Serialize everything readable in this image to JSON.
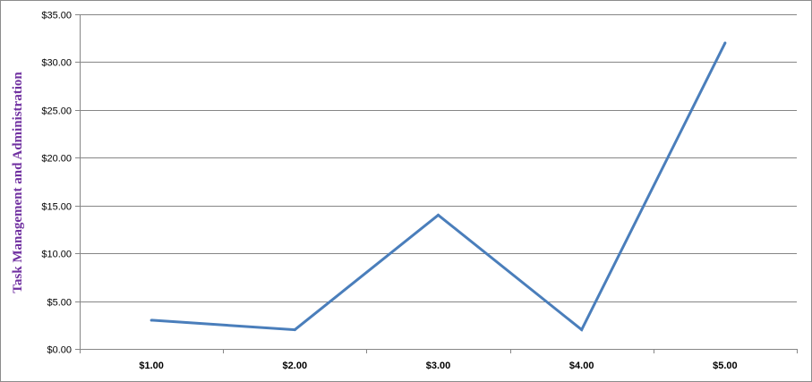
{
  "chart_data": {
    "type": "line",
    "title": "",
    "xlabel": "",
    "ylabel": "Task Management and Administration",
    "categories": [
      "$1.00",
      "$2.00",
      "$3.00",
      "$4.00",
      "$5.00"
    ],
    "series": [
      {
        "values": [
          3,
          2,
          14,
          2,
          32
        ]
      }
    ],
    "ylim": [
      0,
      35
    ],
    "ytick_values": [
      0,
      5,
      10,
      15,
      20,
      25,
      30,
      35
    ],
    "ytick_labels": [
      "$0.00",
      "$5.00",
      "$10.00",
      "$15.00",
      "$20.00",
      "$25.00",
      "$30.00",
      "$35.00"
    ],
    "grid": true,
    "legend": "none"
  },
  "colors": {
    "line": "#4a7ebb",
    "gridline": "#868686",
    "ylabel": "#7030a0"
  }
}
